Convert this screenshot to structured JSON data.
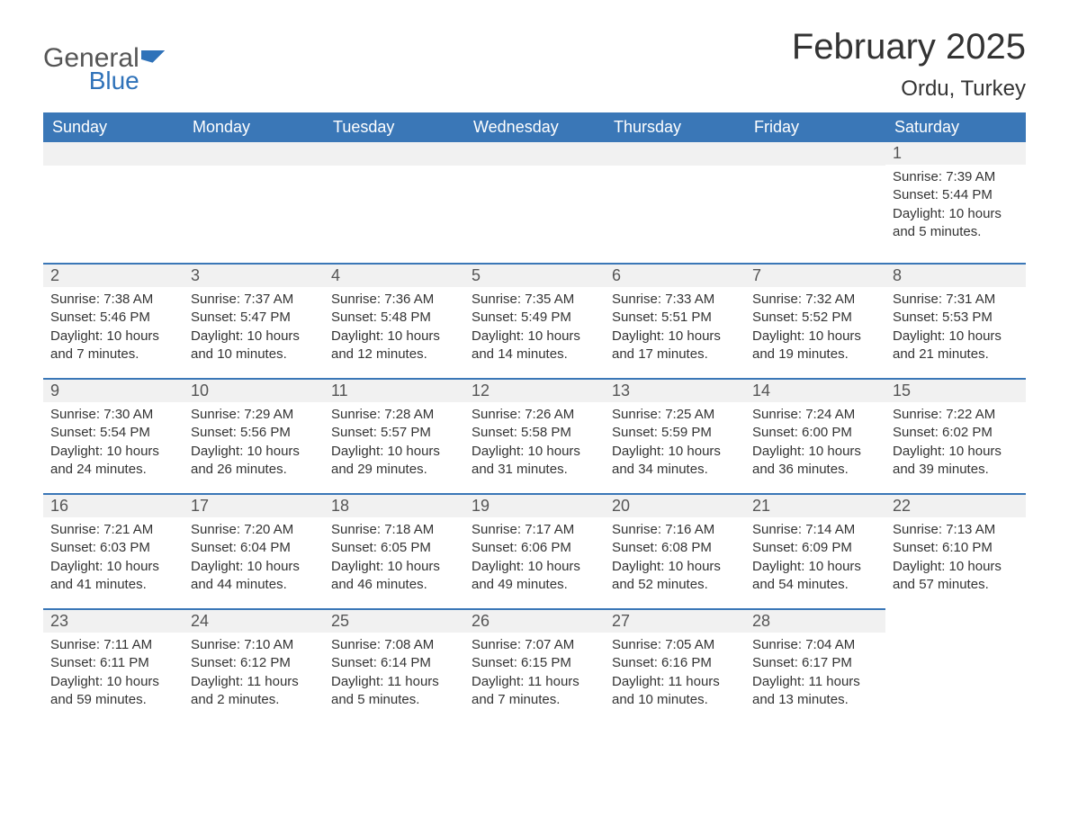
{
  "logo": {
    "general": "General",
    "blue": "Blue"
  },
  "title": "February 2025",
  "location": "Ordu, Turkey",
  "colors": {
    "header_bg": "#3a77b7",
    "header_text": "#ffffff",
    "bar_bg": "#f1f1f1",
    "bar_border": "#3a77b7",
    "text": "#333333",
    "logo_blue": "#2f72b9"
  },
  "weekdays": [
    "Sunday",
    "Monday",
    "Tuesday",
    "Wednesday",
    "Thursday",
    "Friday",
    "Saturday"
  ],
  "first_day_index": 6,
  "days": [
    {
      "n": 1,
      "sunrise": "7:39 AM",
      "sunset": "5:44 PM",
      "daylight": "10 hours and 5 minutes."
    },
    {
      "n": 2,
      "sunrise": "7:38 AM",
      "sunset": "5:46 PM",
      "daylight": "10 hours and 7 minutes."
    },
    {
      "n": 3,
      "sunrise": "7:37 AM",
      "sunset": "5:47 PM",
      "daylight": "10 hours and 10 minutes."
    },
    {
      "n": 4,
      "sunrise": "7:36 AM",
      "sunset": "5:48 PM",
      "daylight": "10 hours and 12 minutes."
    },
    {
      "n": 5,
      "sunrise": "7:35 AM",
      "sunset": "5:49 PM",
      "daylight": "10 hours and 14 minutes."
    },
    {
      "n": 6,
      "sunrise": "7:33 AM",
      "sunset": "5:51 PM",
      "daylight": "10 hours and 17 minutes."
    },
    {
      "n": 7,
      "sunrise": "7:32 AM",
      "sunset": "5:52 PM",
      "daylight": "10 hours and 19 minutes."
    },
    {
      "n": 8,
      "sunrise": "7:31 AM",
      "sunset": "5:53 PM",
      "daylight": "10 hours and 21 minutes."
    },
    {
      "n": 9,
      "sunrise": "7:30 AM",
      "sunset": "5:54 PM",
      "daylight": "10 hours and 24 minutes."
    },
    {
      "n": 10,
      "sunrise": "7:29 AM",
      "sunset": "5:56 PM",
      "daylight": "10 hours and 26 minutes."
    },
    {
      "n": 11,
      "sunrise": "7:28 AM",
      "sunset": "5:57 PM",
      "daylight": "10 hours and 29 minutes."
    },
    {
      "n": 12,
      "sunrise": "7:26 AM",
      "sunset": "5:58 PM",
      "daylight": "10 hours and 31 minutes."
    },
    {
      "n": 13,
      "sunrise": "7:25 AM",
      "sunset": "5:59 PM",
      "daylight": "10 hours and 34 minutes."
    },
    {
      "n": 14,
      "sunrise": "7:24 AM",
      "sunset": "6:00 PM",
      "daylight": "10 hours and 36 minutes."
    },
    {
      "n": 15,
      "sunrise": "7:22 AM",
      "sunset": "6:02 PM",
      "daylight": "10 hours and 39 minutes."
    },
    {
      "n": 16,
      "sunrise": "7:21 AM",
      "sunset": "6:03 PM",
      "daylight": "10 hours and 41 minutes."
    },
    {
      "n": 17,
      "sunrise": "7:20 AM",
      "sunset": "6:04 PM",
      "daylight": "10 hours and 44 minutes."
    },
    {
      "n": 18,
      "sunrise": "7:18 AM",
      "sunset": "6:05 PM",
      "daylight": "10 hours and 46 minutes."
    },
    {
      "n": 19,
      "sunrise": "7:17 AM",
      "sunset": "6:06 PM",
      "daylight": "10 hours and 49 minutes."
    },
    {
      "n": 20,
      "sunrise": "7:16 AM",
      "sunset": "6:08 PM",
      "daylight": "10 hours and 52 minutes."
    },
    {
      "n": 21,
      "sunrise": "7:14 AM",
      "sunset": "6:09 PM",
      "daylight": "10 hours and 54 minutes."
    },
    {
      "n": 22,
      "sunrise": "7:13 AM",
      "sunset": "6:10 PM",
      "daylight": "10 hours and 57 minutes."
    },
    {
      "n": 23,
      "sunrise": "7:11 AM",
      "sunset": "6:11 PM",
      "daylight": "10 hours and 59 minutes."
    },
    {
      "n": 24,
      "sunrise": "7:10 AM",
      "sunset": "6:12 PM",
      "daylight": "11 hours and 2 minutes."
    },
    {
      "n": 25,
      "sunrise": "7:08 AM",
      "sunset": "6:14 PM",
      "daylight": "11 hours and 5 minutes."
    },
    {
      "n": 26,
      "sunrise": "7:07 AM",
      "sunset": "6:15 PM",
      "daylight": "11 hours and 7 minutes."
    },
    {
      "n": 27,
      "sunrise": "7:05 AM",
      "sunset": "6:16 PM",
      "daylight": "11 hours and 10 minutes."
    },
    {
      "n": 28,
      "sunrise": "7:04 AM",
      "sunset": "6:17 PM",
      "daylight": "11 hours and 13 minutes."
    }
  ],
  "labels": {
    "sunrise": "Sunrise:",
    "sunset": "Sunset:",
    "daylight": "Daylight:"
  }
}
